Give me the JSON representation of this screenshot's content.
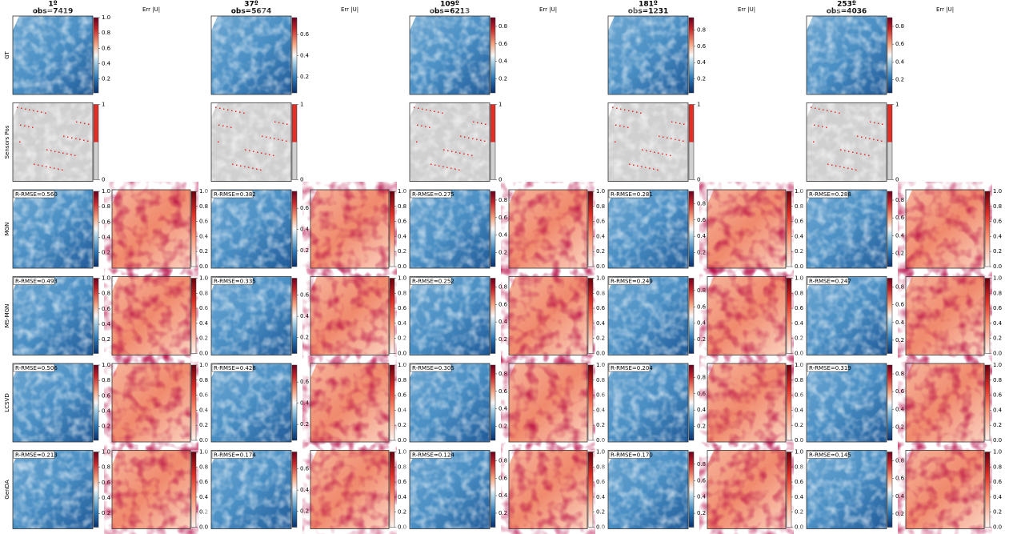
{
  "columns": [
    {
      "angle": "1º",
      "obs": "obs=7419",
      "err_title": "Err |U|",
      "cbar": {
        "lim": [
          0.02,
          1.0
        ],
        "ticks": [
          0.2,
          0.4,
          0.6,
          0.8,
          {
            "value": 1,
            "label": "1.0"
          }
        ]
      }
    },
    {
      "angle": "37º",
      "obs": "obs=5674",
      "err_title": "Err |U|",
      "cbar": {
        "lim": [
          0.05,
          0.76
        ],
        "ticks": [
          0.2,
          0.4,
          0.6
        ]
      }
    },
    {
      "angle": "109º",
      "obs": "obs=6213",
      "err_title": "Err |U|",
      "cbar": {
        "lim": [
          0.04,
          0.9
        ],
        "ticks": [
          0.2,
          0.4,
          0.6,
          0.8
        ]
      }
    },
    {
      "angle": "181º",
      "obs": "obs=1231",
      "err_title": "Err |U|",
      "cbar": {
        "lim": [
          0.03,
          0.95
        ],
        "ticks": [
          0.2,
          0.4,
          0.6,
          0.8
        ]
      }
    },
    {
      "angle": "253º",
      "obs": "obs=4036",
      "err_title": "Err |U|",
      "cbar": {
        "lim": [
          0.05,
          0.9
        ],
        "ticks": [
          0.2,
          0.4,
          0.6,
          0.8
        ]
      }
    }
  ],
  "sensor_cbar": {
    "lim": [
      0,
      1
    ],
    "ticks": [
      0,
      1
    ]
  },
  "err_cbar": {
    "lim": [
      0,
      1
    ],
    "ticks": [
      {
        "value": 0,
        "label": "0.0"
      },
      0.2,
      0.4,
      0.6,
      0.8,
      {
        "value": 1,
        "label": "1.0"
      }
    ]
  },
  "rows": [
    {
      "label": "GT"
    },
    {
      "label": "Sensors Pos"
    },
    {
      "label": "MGN",
      "rmse": [
        "R-RMSE=0.560",
        "R-RMSE=0.382",
        "R-RMSE=0.275",
        "R-RMSE=0.281",
        "R-RMSE=0.288"
      ]
    },
    {
      "label": "MS-MGN",
      "rmse": [
        "R-RMSE=0.493",
        "R-RMSE=0.335",
        "R-RMSE=0.252",
        "R-RMSE=0.249",
        "R-RMSE=0.247"
      ]
    },
    {
      "label": "LCSVD",
      "rmse": [
        "R-RMSE=0.506",
        "R-RMSE=0.428",
        "R-RMSE=0.305",
        "R-RMSE=0.204",
        "R-RMSE=0.319"
      ]
    },
    {
      "label": "GenDA",
      "rmse": [
        "R-RMSE=0.213",
        "R-RMSE=0.174",
        "R-RMSE=0.124",
        "R-RMSE=0.170",
        "R-RMSE=0.145"
      ]
    }
  ]
}
